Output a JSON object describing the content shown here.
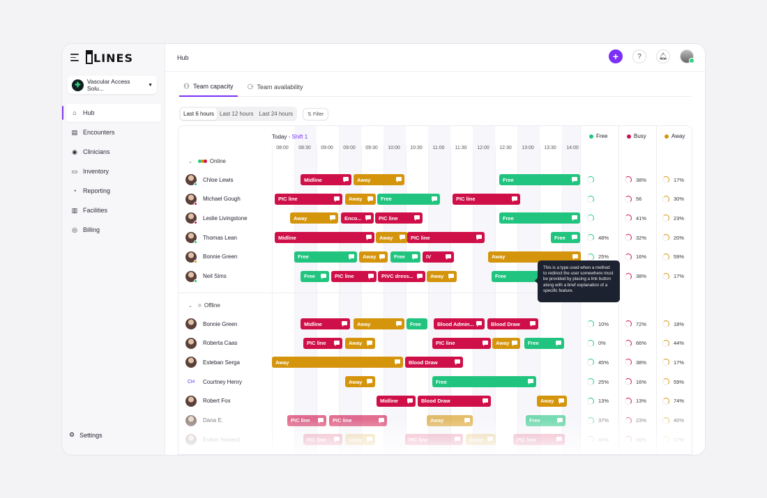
{
  "sidebar": {
    "logo_text": "LINES",
    "org_name": "Vascular Access Solu...",
    "items": [
      {
        "label": "Hub",
        "icon": "home-icon",
        "active": true
      },
      {
        "label": "Encounters",
        "icon": "encounters-icon"
      },
      {
        "label": "Clinicians",
        "icon": "clinicians-icon"
      },
      {
        "label": "Inventory",
        "icon": "inventory-icon"
      },
      {
        "label": "Reporting",
        "icon": "reporting-icon"
      },
      {
        "label": "Facilities",
        "icon": "facilities-icon"
      },
      {
        "label": "Billing",
        "icon": "billing-icon"
      }
    ],
    "settings_label": "Settings"
  },
  "header": {
    "title": "Hub"
  },
  "tabs": [
    {
      "label": "Team capacity",
      "active": true
    },
    {
      "label": "Team availability"
    }
  ],
  "ranges": [
    "Last 6 hours",
    "Last 12 hours",
    "Last 24 hours"
  ],
  "filter_label": "Filter",
  "schedule": {
    "today_label": "Today",
    "shift_label": "- Shift 1",
    "times": [
      "08:00",
      "08:30",
      "09:00",
      "09:00",
      "09:30",
      "10:00",
      "10:30",
      "11:00",
      "11:30",
      "12:00",
      "12:30",
      "13:00",
      "13:30",
      "14:00"
    ],
    "legend": [
      {
        "label": "Free",
        "color": "#21c47f"
      },
      {
        "label": "Busy",
        "color": "#cf0f48"
      },
      {
        "label": "Away",
        "color": "#d4940b"
      }
    ],
    "online_label": "Online",
    "offline_label": "Offline",
    "tooltip": "This is a type used when a method to redirect the user somewhere must be provided by placing a link button along with a brief explanation of a specific feature."
  },
  "colors": {
    "free": "#21c47f",
    "busy": "#cf0f48",
    "away": "#d4940b",
    "accent": "#7b2ff7"
  },
  "online_rows": [
    {
      "name": "Chloe Lewis",
      "status": "#21c47f",
      "bars": [
        [
          "busy",
          "Midline",
          0
        ],
        [
          "away",
          "Away",
          0
        ],
        [
          "free",
          "Free",
          0
        ]
      ],
      "free": "",
      "busy": "38%",
      "away": "17%"
    },
    {
      "name": "Michael Gough",
      "status": "#cf0f48",
      "bars": [
        [
          "busy",
          "PIC line",
          0
        ],
        [
          "away",
          "Away",
          0
        ],
        [
          "free",
          "Free",
          0
        ],
        [
          "busy",
          "PIC line",
          0
        ]
      ],
      "free": "",
      "busy": "56",
      "away": "30%"
    },
    {
      "name": "Leslie Livingstone",
      "status": "#cf0f48",
      "bars": [
        [
          "away",
          "Away",
          0
        ],
        [
          "busy",
          "Enco...",
          0
        ],
        [
          "busy",
          "PIC line",
          0
        ],
        [
          "free",
          "Free",
          0
        ]
      ],
      "free": "",
      "busy": "41%",
      "away": "23%"
    },
    {
      "name": "Thomas Lean",
      "status": "#21c47f",
      "bars": [
        [
          "busy",
          "Midline",
          0
        ],
        [
          "away",
          "Away",
          0
        ],
        [
          "busy",
          "PIC line",
          0
        ],
        [
          "free",
          "Free",
          0
        ]
      ],
      "free": "48%",
      "busy": "32%",
      "away": "20%"
    },
    {
      "name": "Bonnie Green",
      "status": "#d4940b",
      "bars": [
        [
          "free",
          "Free",
          0
        ],
        [
          "away",
          "Away",
          0
        ],
        [
          "free",
          "Free",
          0
        ],
        [
          "busy",
          "IV",
          0
        ],
        [
          "away",
          "Away",
          0
        ]
      ],
      "free": "25%",
      "busy": "16%",
      "away": "59%"
    },
    {
      "name": "Neil Sims",
      "status": "#21c47f",
      "bars": [
        [
          "free",
          "Free",
          0
        ],
        [
          "busy",
          "PIC line",
          0
        ],
        [
          "busy",
          "PIVC dress...",
          0
        ],
        [
          "away",
          "Away",
          0
        ],
        [
          "free",
          "Free",
          0
        ]
      ],
      "free": "45%",
      "busy": "38%",
      "away": "17%"
    }
  ],
  "offline_rows": [
    {
      "name": "Bonnie Green",
      "bars": [
        [
          "busy",
          "Midline",
          0
        ],
        [
          "away",
          "Away",
          0
        ],
        [
          "free",
          "Free",
          0
        ],
        [
          "busy",
          "Blood Admin...",
          0
        ],
        [
          "busy",
          "Blood Draw",
          0
        ]
      ],
      "free": "10%",
      "busy": "72%",
      "away": "18%"
    },
    {
      "name": "Roberta Caas",
      "bars": [
        [
          "busy",
          "PIC line",
          0
        ],
        [
          "away",
          "Away",
          0
        ],
        [
          "busy",
          "PIC line",
          0
        ],
        [
          "away",
          "Away",
          0
        ],
        [
          "free",
          "Free",
          0
        ]
      ],
      "free": "0%",
      "busy": "66%",
      "away": "44%"
    },
    {
      "name": "Esteban Serga",
      "bars": [
        [
          "away",
          "Away",
          0
        ],
        [
          "busy",
          "Blood Draw",
          0
        ]
      ],
      "free": "45%",
      "busy": "38%",
      "away": "17%"
    },
    {
      "name": "Courtney Henry",
      "initials": "CH",
      "bars": [
        [
          "away",
          "Away",
          0
        ],
        [
          "free",
          "Free",
          0
        ]
      ],
      "free": "25%",
      "busy": "16%",
      "away": "59%"
    },
    {
      "name": "Robert Fox",
      "bars": [
        [
          "busy",
          "Midline",
          0
        ],
        [
          "busy",
          "Blood Draw",
          0
        ],
        [
          "away",
          "Away",
          0
        ]
      ],
      "free": "13%",
      "busy": "13%",
      "away": "74%"
    },
    {
      "name": "Dana E.",
      "bars": [
        [
          "busy",
          "PIC line",
          0
        ],
        [
          "busy",
          "PIC line",
          0
        ],
        [
          "away",
          "Away",
          0
        ],
        [
          "free",
          "Free",
          0
        ]
      ],
      "free": "37%",
      "busy": "23%",
      "away": "40%"
    },
    {
      "name": "Esther Howard",
      "bars": [
        [
          "busy",
          "PIC line",
          0
        ],
        [
          "away",
          "Away",
          0
        ],
        [
          "busy",
          "PIC line",
          0
        ],
        [
          "away",
          "Away",
          0
        ],
        [
          "busy",
          "PIC line",
          0
        ]
      ],
      "free": "45%",
      "busy": "38%",
      "away": "17%"
    }
  ]
}
